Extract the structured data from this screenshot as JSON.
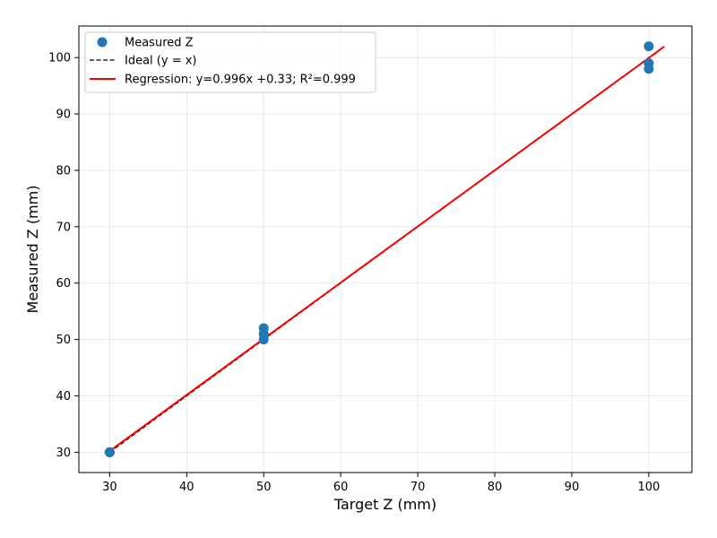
{
  "chart_data": {
    "type": "scatter",
    "title": "",
    "xlabel": "Target Z (mm)",
    "ylabel": "Measured Z (mm)",
    "xlim": [
      26,
      105.6
    ],
    "ylim": [
      26.4,
      105.6
    ],
    "xticks": [
      30,
      40,
      50,
      60,
      70,
      80,
      90,
      100
    ],
    "yticks": [
      30,
      40,
      50,
      60,
      70,
      80,
      90,
      100
    ],
    "grid": true,
    "legend_position": "top-left",
    "series": [
      {
        "name": "Measured Z",
        "kind": "scatter",
        "color": "#1f77b4",
        "points": [
          [
            30,
            30
          ],
          [
            30,
            30
          ],
          [
            30,
            30
          ],
          [
            50,
            50
          ],
          [
            50,
            51
          ],
          [
            50,
            52
          ],
          [
            100,
            98
          ],
          [
            100,
            99
          ],
          [
            100,
            102
          ]
        ]
      },
      {
        "name": "Ideal (y = x)",
        "kind": "line",
        "style": "dashed",
        "color": "#000000",
        "points": [
          [
            30,
            30
          ],
          [
            102,
            102
          ]
        ]
      },
      {
        "name": "Regression: y=0.996x +0.33; R²=0.999",
        "kind": "line",
        "style": "solid",
        "color": "#ff0000",
        "slope": 0.996,
        "intercept": 0.33,
        "x_range": [
          30,
          102
        ]
      }
    ]
  }
}
